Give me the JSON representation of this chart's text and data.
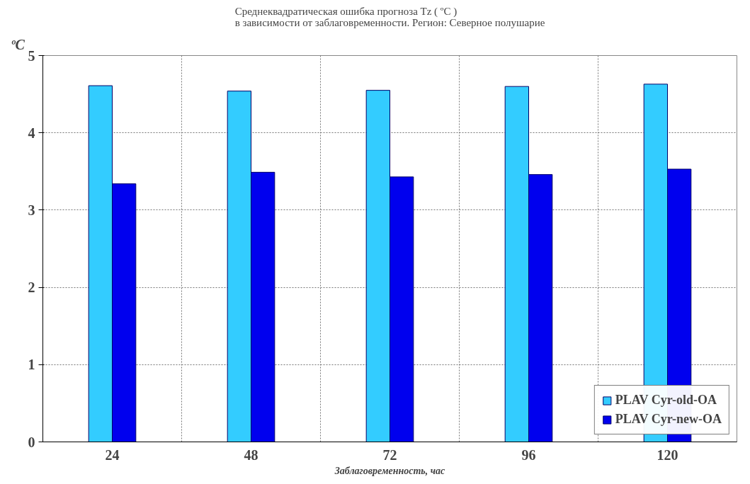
{
  "chart_data": {
    "type": "bar",
    "title": "Среднеквадратическая ошибка прогноза Tz ( ºC )\nв зависимости от заблаговременности. Регион: Северное полушарие",
    "xlabel": "Заблаговременность, час",
    "ylabel": "ºC",
    "categories": [
      "24",
      "48",
      "72",
      "96",
      "120"
    ],
    "series": [
      {
        "name": "PLAV Cyr-old-OA",
        "color": "#33ccff",
        "values": [
          4.61,
          4.54,
          4.55,
          4.6,
          4.63
        ]
      },
      {
        "name": "PLAV Cyr-new-OA",
        "color": "#0000ee",
        "values": [
          3.34,
          3.49,
          3.43,
          3.46,
          3.53
        ]
      }
    ],
    "ylim": [
      0,
      5
    ],
    "yticks": [
      0,
      1,
      2,
      3,
      4,
      5
    ],
    "grid": true,
    "legend": "bottom right"
  }
}
